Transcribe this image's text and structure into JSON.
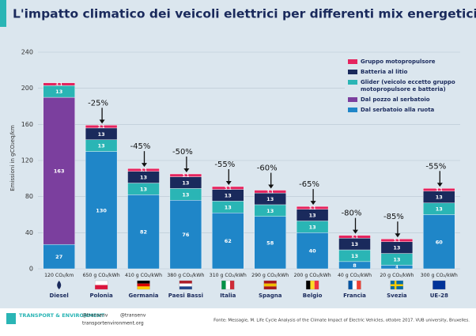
{
  "chart_data": {
    "type": "stacked_bar",
    "title": "L'impatto climatico dei veicoli elettrici per differenti mix energetici",
    "y_label": "Emissioni in gCO₂eq/km",
    "categories": [
      "Diesel",
      "Polonia",
      "Germania",
      "Paesi Bassi",
      "Italia",
      "Spagna",
      "Belgio",
      "Francia",
      "Svezia",
      "UE-28"
    ],
    "category_sublabels": [
      "120 CO₂/km",
      "650 g CO₂/kWh",
      "410 g CO₂/kWh",
      "380 g CO₂/kWh",
      "310 g CO₂/kWh",
      "290 g CO₂/kWh",
      "200 g CO₂/kWh",
      "40 g CO₂/kWh",
      "20 g CO₂/kWh",
      "300 g CO₂/kWh"
    ],
    "annotations": [
      null,
      "-25%",
      "-45%",
      "-50%",
      "-55%",
      "-60%",
      "-65%",
      "-80%",
      "-85%",
      "-55%"
    ],
    "series": [
      {
        "name": "Dal serbatoio alla ruota",
        "color": "#1f86c8",
        "values": [
          27,
          130,
          82,
          76,
          62,
          58,
          40,
          8,
          4,
          60
        ]
      },
      {
        "name": "Dal pozzo al serbatoio",
        "color": "#7b3f9e",
        "values": [
          163,
          null,
          null,
          null,
          null,
          null,
          null,
          null,
          null,
          null
        ]
      },
      {
        "name": "Glider (veicolo eccetto gruppo motopropulsore e batteria)",
        "color": "#2ab5b5",
        "values": [
          13,
          13,
          13,
          13,
          13,
          13,
          13,
          13,
          13,
          13
        ]
      },
      {
        "name": "Batteria al litio",
        "color": "#1a2a5c",
        "values": [
          null,
          13,
          13,
          13,
          13,
          13,
          13,
          13,
          13,
          13
        ]
      },
      {
        "name": "Gruppo motopropulsore",
        "color": "#e5245e",
        "values": [
          3.1,
          3.1,
          3.1,
          3.1,
          3.1,
          3.1,
          3.1,
          3.1,
          3.1,
          3.1
        ]
      }
    ],
    "ylim": [
      0,
      240
    ],
    "yticks": [
      0,
      40,
      80,
      120,
      160,
      200,
      240
    ],
    "grid": true,
    "footer": {
      "brand": "TRANSPORT & ENVIRONMENT",
      "twitter": "@transenv",
      "facebook": "@transenv",
      "website": "transportenvironment.org",
      "source": "Fonte: Messagie, M. Life Cycle Analysis of the Climate Impact of Electric Vehicles, ottobre 2017. VUB university, Bruxelles."
    }
  }
}
